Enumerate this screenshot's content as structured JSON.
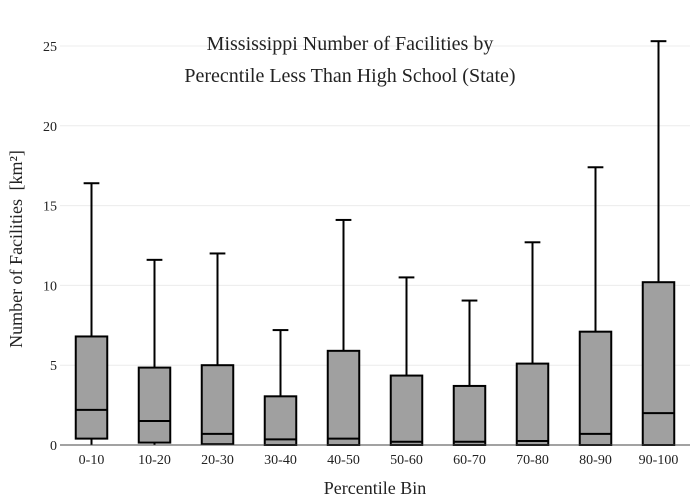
{
  "chart_data": {
    "type": "box",
    "title_lines": [
      "Mississippi Number of Facilities by",
      "Perecntile Less Than High School (State)"
    ],
    "xlabel": "Percentile Bin",
    "ylabel": "Number of Facilities",
    "ylabel_unit": "[km²]",
    "ylim": [
      0,
      26
    ],
    "yticks": [
      0,
      5,
      10,
      15,
      20,
      25
    ],
    "ytick_labels": [
      "0",
      "5",
      "10",
      "15",
      "20",
      "25"
    ],
    "grid": true,
    "box_color": "#a0a0a0",
    "categories": [
      "0-10",
      "10-20",
      "20-30",
      "30-40",
      "40-50",
      "50-60",
      "60-70",
      "70-80",
      "80-90",
      "90-100"
    ],
    "boxes": [
      {
        "min": 0,
        "q1": 0.4,
        "median": 2.2,
        "q3": 6.8,
        "max": 16.4
      },
      {
        "min": 0,
        "q1": 0.15,
        "median": 1.5,
        "q3": 4.85,
        "max": 11.6
      },
      {
        "min": 0,
        "q1": 0.05,
        "median": 0.7,
        "q3": 5.0,
        "max": 12.0
      },
      {
        "min": 0,
        "q1": 0.0,
        "median": 0.35,
        "q3": 3.05,
        "max": 7.2
      },
      {
        "min": 0,
        "q1": 0.0,
        "median": 0.4,
        "q3": 5.9,
        "max": 14.1
      },
      {
        "min": 0,
        "q1": 0.0,
        "median": 0.2,
        "q3": 4.35,
        "max": 10.5
      },
      {
        "min": 0,
        "q1": 0.0,
        "median": 0.2,
        "q3": 3.7,
        "max": 9.05
      },
      {
        "min": 0,
        "q1": 0.0,
        "median": 0.25,
        "q3": 5.1,
        "max": 12.7
      },
      {
        "min": 0,
        "q1": 0.0,
        "median": 0.7,
        "q3": 7.1,
        "max": 17.4
      },
      {
        "min": 0,
        "q1": 0.0,
        "median": 2.0,
        "q3": 10.2,
        "max": 25.3
      }
    ]
  }
}
